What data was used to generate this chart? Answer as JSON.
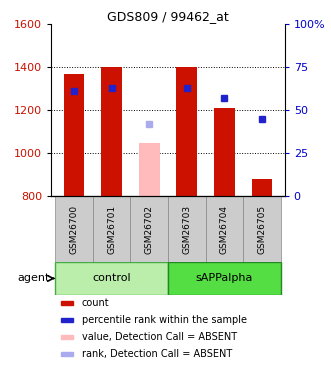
{
  "title": "GDS809 / 99462_at",
  "samples": [
    "GSM26700",
    "GSM26701",
    "GSM26702",
    "GSM26703",
    "GSM26704",
    "GSM26705"
  ],
  "bar_values": [
    1370,
    1400,
    1050,
    1400,
    1210,
    880
  ],
  "bar_colors": [
    "#cc1100",
    "#cc1100",
    "#ffbbbb",
    "#cc1100",
    "#cc1100",
    "#cc1100"
  ],
  "rank_values": [
    61,
    63,
    42,
    63,
    57,
    45
  ],
  "rank_colors": [
    "#2222cc",
    "#2222cc",
    "#aaaaee",
    "#2222cc",
    "#2222cc",
    "#2222cc"
  ],
  "absent_flags": [
    false,
    false,
    true,
    false,
    false,
    false
  ],
  "ylim_left": [
    800,
    1600
  ],
  "ylim_right": [
    0,
    100
  ],
  "yticks_left": [
    800,
    1000,
    1200,
    1400,
    1600
  ],
  "yticks_right": [
    0,
    25,
    50,
    75,
    100
  ],
  "ytick_labels_right": [
    "0",
    "25",
    "50",
    "75",
    "100%"
  ],
  "group_labels": [
    "control",
    "sAPPalpha"
  ],
  "group_ranges": [
    [
      0,
      3
    ],
    [
      3,
      6
    ]
  ],
  "group_colors_fill": [
    "#bbeeaa",
    "#55dd44"
  ],
  "group_colors_edge": [
    "#44aa44",
    "#228822"
  ],
  "agent_label": "agent",
  "bar_width": 0.55,
  "legend_items": [
    {
      "label": "count",
      "color": "#cc1100"
    },
    {
      "label": "percentile rank within the sample",
      "color": "#2222cc"
    },
    {
      "label": "value, Detection Call = ABSENT",
      "color": "#ffbbbb"
    },
    {
      "label": "rank, Detection Call = ABSENT",
      "color": "#aaaaee"
    }
  ],
  "label_cell_color": "#cccccc",
  "label_cell_edge": "#888888",
  "grid_dotted_at": [
    1000,
    1200,
    1400
  ]
}
